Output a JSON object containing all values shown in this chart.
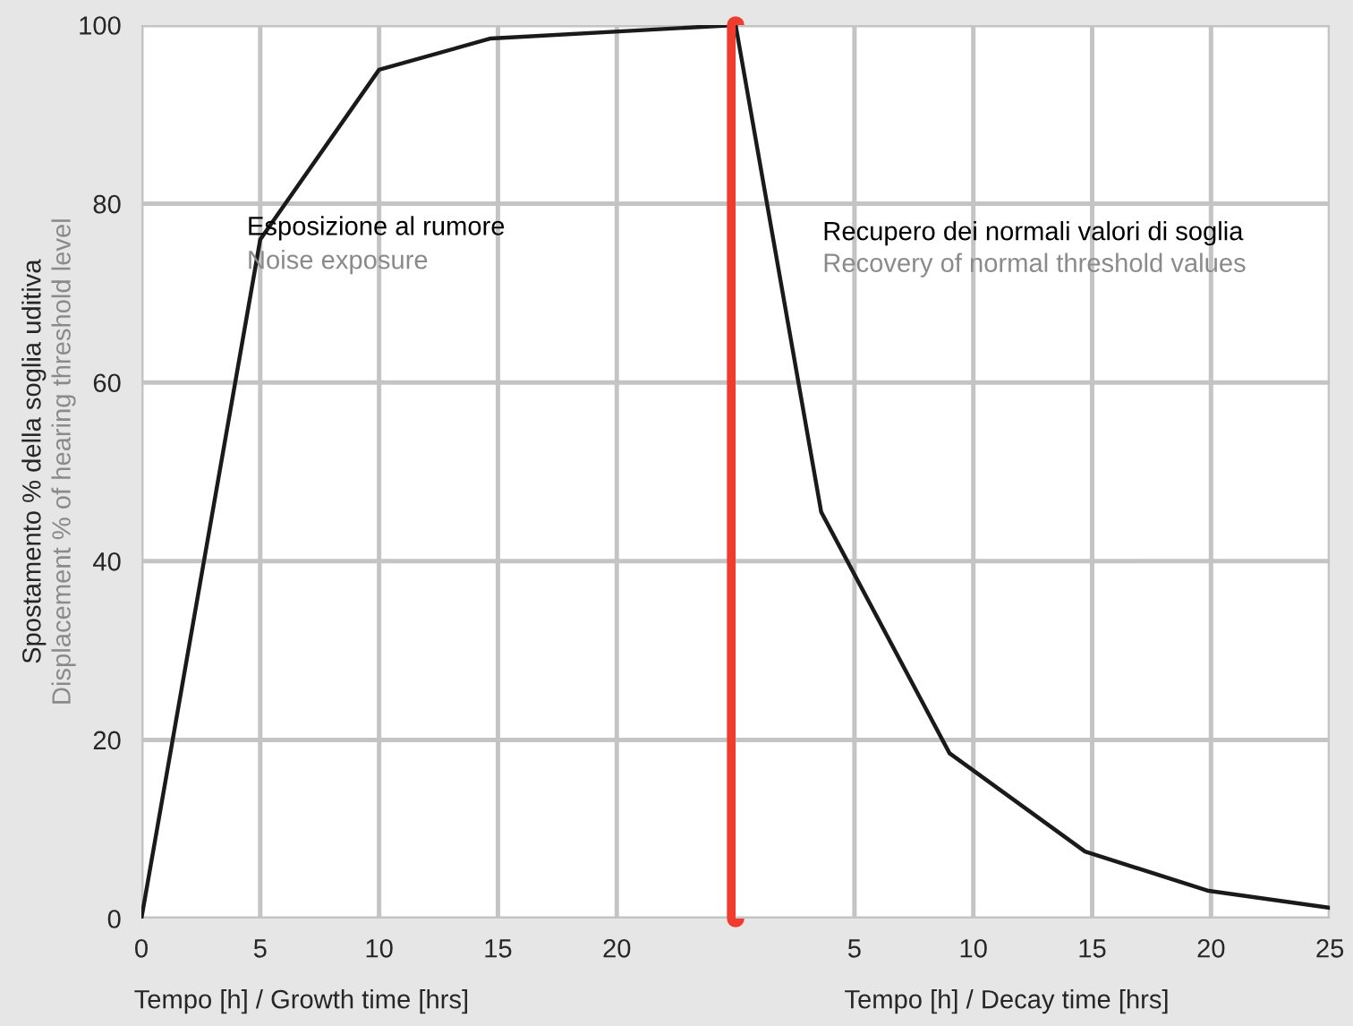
{
  "chart_data": [
    {
      "type": "line",
      "xlabel": "Tempo [h] / Growth time [hrs]",
      "ylabel": "Spostamento % della soglia uditiva",
      "x": [
        0,
        5,
        10,
        14.7,
        25
      ],
      "series": [
        {
          "color": "#1a1a1a",
          "values": [
            0,
            76,
            95,
            98.5,
            100
          ]
        }
      ],
      "xlim": [
        0,
        25
      ],
      "ylim": [
        0,
        100
      ],
      "xticks": [
        0,
        5,
        10,
        15,
        20
      ],
      "yticks": [
        0,
        20,
        40,
        60,
        80,
        100
      ],
      "grid": true,
      "marker": "none",
      "line_style": "solid",
      "ref_lines": [
        {
          "axis": "x",
          "value": 25,
          "color": "#f03c2e"
        }
      ],
      "annotations": [
        "Esposizione al rumore",
        "Noise exposure",
        "Displacement % of hearing threshold level"
      ]
    },
    {
      "type": "line",
      "xlabel": "Tempo [h] / Decay time [hrs]",
      "x": [
        0,
        3.6,
        9.0,
        14.7,
        19.9,
        25
      ],
      "series": [
        {
          "color": "#1a1a1a",
          "values": [
            100,
            45.5,
            18.5,
            7.5,
            3.1,
            1.2
          ]
        }
      ],
      "xlim": [
        0,
        25
      ],
      "ylim": [
        0,
        100
      ],
      "xticks": [
        5,
        10,
        15,
        20,
        25
      ],
      "yticks": [
        0,
        20,
        40,
        60,
        80,
        100
      ],
      "tick_labels": "x",
      "grid": true,
      "marker": "none",
      "line_style": "solid",
      "annotations": [
        "Recupero dei normali valori di soglia",
        "Recovery of normal threshold values"
      ]
    }
  ]
}
